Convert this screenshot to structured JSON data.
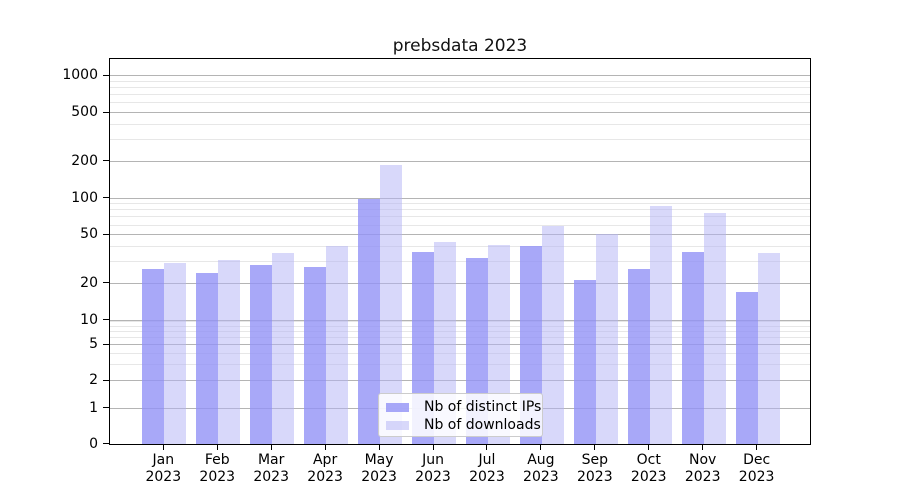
{
  "chart_data": {
    "type": "bar",
    "title": "prebsdata 2023",
    "categories": [
      "Jan 2023",
      "Feb 2023",
      "Mar 2023",
      "Apr 2023",
      "May 2023",
      "Jun 2023",
      "Jul 2023",
      "Aug 2023",
      "Sep 2023",
      "Oct 2023",
      "Nov 2023",
      "Dec 2023"
    ],
    "series": [
      {
        "name": "Nb of distinct IPs",
        "color": "rgba(146,146,246,0.8)",
        "values": [
          26,
          24,
          28,
          27,
          97,
          36,
          32,
          40,
          21,
          26,
          36,
          17
        ]
      },
      {
        "name": "Nb of downloads",
        "color": "rgba(177,177,245,0.5)",
        "values": [
          29,
          31,
          35,
          40,
          185,
          43,
          41,
          59,
          50,
          85,
          75,
          35
        ]
      }
    ],
    "xlabel": "",
    "ylabel": "",
    "yscale": "log-with-zero-baseline",
    "y_major_ticks": [
      1000,
      500,
      200,
      100,
      50,
      20,
      10,
      5,
      2,
      1,
      0
    ],
    "y_minor_ticks": [
      900,
      800,
      700,
      600,
      400,
      300,
      90,
      80,
      70,
      60,
      40,
      30,
      9,
      8,
      7,
      6,
      4,
      3
    ],
    "ylim": [
      0,
      1400
    ],
    "grid": true,
    "legend_position": "lower center"
  },
  "colors": {
    "major_grid": "#b4b4b4",
    "minor_grid": "#e7e7e7",
    "axis": "#000000",
    "legend_border": "#cccccc",
    "background": "#ffffff"
  }
}
